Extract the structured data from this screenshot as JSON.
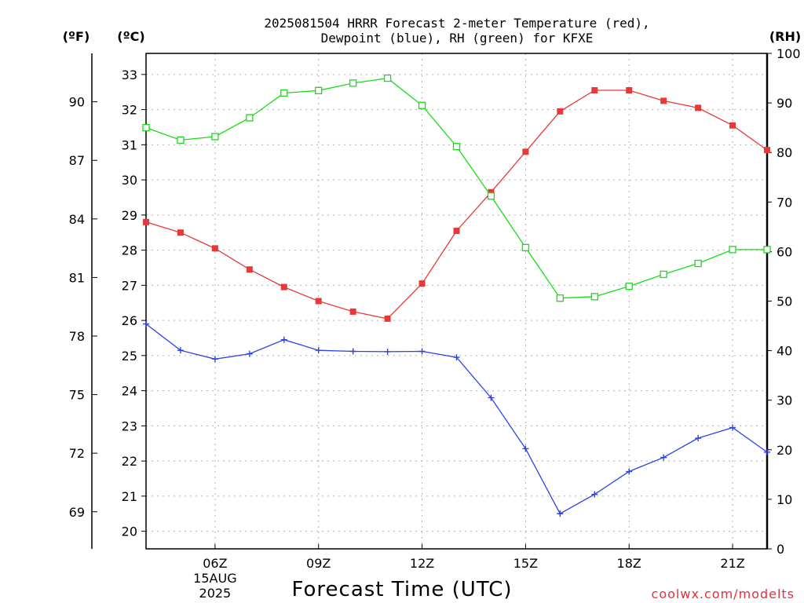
{
  "chart_data": {
    "type": "line",
    "title_line1": "2025081504 HRRR Forecast 2-meter Temperature (red),",
    "title_line2": "Dewpoint (blue), RH (green) for KFXE",
    "xlabel": "Forecast Time (UTC)",
    "credit": "coolwx.com/modelts",
    "units": {
      "fahrenheit": "(ºF)",
      "celsius": "(ºC)",
      "rh": "(RH)"
    },
    "x_hours": [
      4,
      5,
      6,
      7,
      8,
      9,
      10,
      11,
      12,
      13,
      14,
      15,
      16,
      17,
      18,
      19,
      20,
      21,
      22
    ],
    "x_ticks": [
      {
        "hour": 6,
        "label": "06Z",
        "date": "15AUG",
        "year": "2025"
      },
      {
        "hour": 9,
        "label": "09Z"
      },
      {
        "hour": 12,
        "label": "12Z"
      },
      {
        "hour": 15,
        "label": "15Z"
      },
      {
        "hour": 18,
        "label": "18Z"
      },
      {
        "hour": 21,
        "label": "21Z"
      }
    ],
    "xlim": [
      4,
      22
    ],
    "ylim_c": [
      19.5,
      33.6
    ],
    "ylim_rh": [
      0,
      100
    ],
    "yticks_c": [
      "20",
      "21",
      "22",
      "23",
      "24",
      "25",
      "26",
      "27",
      "28",
      "29",
      "30",
      "31",
      "32",
      "33"
    ],
    "yticks_f": [
      "69",
      "72",
      "75",
      "78",
      "81",
      "84",
      "87",
      "90"
    ],
    "yticks_rh": [
      "0",
      "10",
      "20",
      "30",
      "40",
      "50",
      "60",
      "70",
      "80",
      "90",
      "100"
    ],
    "grid": true,
    "series": [
      {
        "name": "Temperature",
        "axis": "c",
        "color": "#e8393a",
        "marker": "filled-square",
        "values": [
          28.8,
          28.5,
          28.05,
          27.45,
          26.95,
          26.55,
          26.25,
          26.05,
          27.05,
          28.55,
          29.65,
          30.8,
          31.95,
          32.55,
          32.55,
          32.25,
          32.05,
          31.55,
          30.85
        ]
      },
      {
        "name": "Dewpoint",
        "axis": "c",
        "color": "#2a42e8",
        "marker": "plus",
        "values": [
          25.9,
          25.15,
          24.9,
          25.05,
          25.45,
          25.15,
          25.12,
          25.11,
          25.12,
          24.95,
          23.8,
          22.35,
          20.5,
          21.05,
          21.7,
          22.1,
          22.65,
          22.95,
          22.25
        ]
      },
      {
        "name": "RH",
        "axis": "rh",
        "color": "#18dc18",
        "marker": "open-square",
        "values": [
          85,
          82.5,
          83.2,
          87,
          92,
          92.5,
          94,
          95,
          89.5,
          81.2,
          71.2,
          60.8,
          50.6,
          50.9,
          53,
          55.4,
          57.6,
          60.4,
          60.4
        ]
      }
    ]
  }
}
